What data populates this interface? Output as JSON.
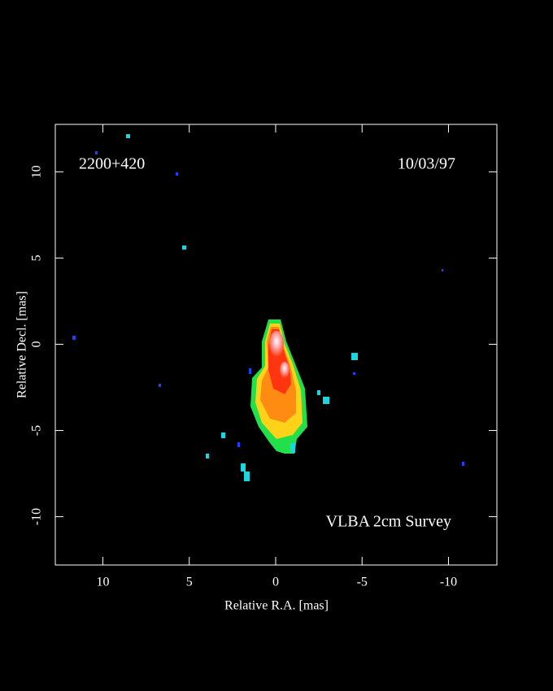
{
  "chart_data": {
    "type": "image",
    "source_name": "2200+420",
    "date": "10/03/97",
    "annotation": "VLBA 2cm Survey",
    "x_label": "Relative R.A. [mas]",
    "y_label": "Relative Decl. [mas]",
    "xlim": [
      12.75,
      -12.8
    ],
    "xticks": [
      10,
      5,
      0,
      -5,
      -10
    ],
    "ylim": [
      -12.8,
      12.75
    ],
    "yticks": [
      -10,
      -5,
      0,
      5,
      10
    ]
  }
}
